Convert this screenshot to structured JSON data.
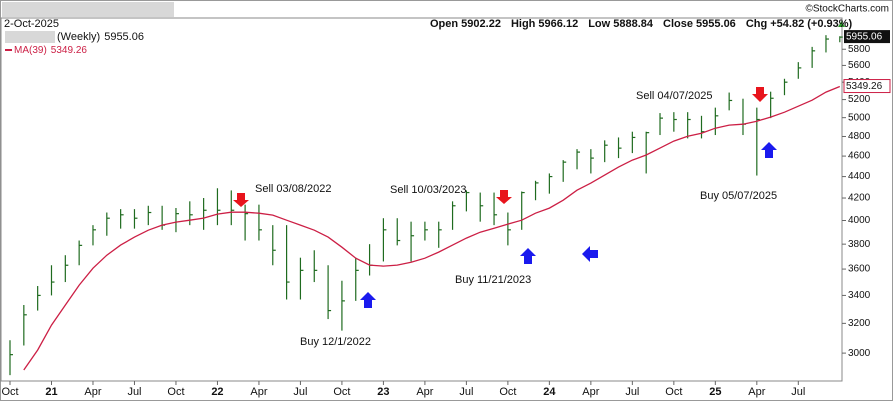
{
  "chart_data": {
    "type": "ohlc",
    "date_label": "2-Oct-2025",
    "copyright": "©StockCharts.com",
    "quote": [
      "Open 5902.22",
      "High 5966.12",
      "Low 5888.84",
      "Close 5955.06",
      "Chg +54.82 (+0.93%)"
    ],
    "annotations": [
      "Sell 03/08/2022",
      "Sell 10/03/2023",
      "Sell 04/07/2025",
      "Buy 12/1/2022",
      "Buy 11/21/2023",
      "Buy 05/07/2025"
    ],
    "x": [
      "2020-10",
      "2020-11",
      "2020-12",
      "2021-01",
      "2021-02",
      "2021-03",
      "2021-04",
      "2021-05",
      "2021-06",
      "2021-07",
      "2021-08",
      "2021-09",
      "2021-10",
      "2021-11",
      "2021-12",
      "2022-01",
      "2022-02",
      "2022-03",
      "2022-04",
      "2022-05",
      "2022-06",
      "2022-07",
      "2022-08",
      "2022-09",
      "2022-10",
      "2022-11",
      "2022-12",
      "2023-01",
      "2023-02",
      "2023-03",
      "2023-04",
      "2023-05",
      "2023-06",
      "2023-07",
      "2023-08",
      "2023-09",
      "2023-10",
      "2023-11",
      "2023-12",
      "2024-01",
      "2024-02",
      "2024-03",
      "2024-04",
      "2024-05",
      "2024-06",
      "2024-07",
      "2024-08",
      "2024-09",
      "2024-10",
      "2024-11",
      "2024-12",
      "2025-01",
      "2025-02",
      "2025-03",
      "2025-04",
      "2025-05",
      "2025-06",
      "2025-07",
      "2025-08",
      "2025-09",
      "2025-10"
    ],
    "series": [
      {
        "name": "(Weekly)",
        "color": "#1f6b1f",
        "high": [
          3085,
          3330,
          3470,
          3630,
          3710,
          3830,
          3960,
          4070,
          4100,
          4100,
          4130,
          4130,
          4110,
          4170,
          4200,
          4290,
          4270,
          4140,
          4140,
          3960,
          3960,
          3690,
          3750,
          3630,
          3510,
          3690,
          3800,
          4020,
          4020,
          3990,
          3990,
          3990,
          4170,
          4270,
          4250,
          4250,
          4070,
          4260,
          4360,
          4430,
          4560,
          4670,
          4670,
          4760,
          4790,
          4850,
          4850,
          5050,
          5060,
          5060,
          5020,
          5110,
          5280,
          5210,
          5110,
          5290,
          5440,
          5640,
          5830,
          5980,
          5966.12
        ],
        "low": [
          2860,
          3050,
          3290,
          3400,
          3500,
          3630,
          3790,
          3870,
          3930,
          3930,
          3960,
          3920,
          3900,
          3960,
          3920,
          3960,
          3960,
          3830,
          3830,
          3630,
          3370,
          3370,
          3500,
          3230,
          3150,
          3360,
          3550,
          3660,
          3790,
          3660,
          3830,
          3770,
          3920,
          4080,
          3990,
          3960,
          3790,
          3920,
          4180,
          4240,
          4350,
          4470,
          4430,
          4540,
          4580,
          4630,
          4430,
          4815,
          4850,
          4780,
          4780,
          4815,
          5080,
          4815,
          4410,
          4995,
          5250,
          5440,
          5570,
          5760,
          5888.84
        ],
        "values": [
          2990,
          3260,
          3400,
          3500,
          3630,
          3790,
          3920,
          4020,
          4050,
          4020,
          4070,
          3960,
          4060,
          4050,
          4090,
          4090,
          4090,
          4060,
          3920,
          3750,
          3500,
          3590,
          3590,
          3290,
          3360,
          3590,
          3630,
          3920,
          3830,
          3870,
          3920,
          3920,
          4130,
          4250,
          4130,
          4050,
          3920,
          4250,
          4340,
          4400,
          4540,
          4640,
          4580,
          4710,
          4680,
          4790,
          4840,
          4995,
          4980,
          4980,
          4850,
          5020,
          5190,
          4930,
          4980,
          5215,
          5400,
          5570,
          5780,
          5930,
          5955.06
        ]
      },
      {
        "name": "MA(39)",
        "color": "#cc1f45",
        "type": "line",
        "values": [
          null,
          2892,
          3020,
          3188,
          3329,
          3477,
          3607,
          3710,
          3792,
          3859,
          3917,
          3960,
          3986,
          4003,
          4021,
          4056,
          4073,
          4073,
          4064,
          4047,
          4003,
          3960,
          3917,
          3859,
          3775,
          3686,
          3631,
          3623,
          3631,
          3654,
          3686,
          3735,
          3792,
          3850,
          3900,
          3934,
          3969,
          4003,
          4064,
          4109,
          4180,
          4272,
          4338,
          4414,
          4491,
          4560,
          4611,
          4680,
          4752,
          4803,
          4834,
          4887,
          4920,
          4930,
          4962,
          5006,
          5060,
          5126,
          5193,
          5285,
          5349.26
        ]
      }
    ],
    "ylim": [
      2830,
      6180
    ],
    "log_scale": true,
    "grid": false,
    "yticks": [
      3000,
      3200,
      3400,
      3600,
      3800,
      4000,
      4200,
      4400,
      4600,
      4800,
      5000,
      5200,
      5400,
      5600,
      5800
    ],
    "xlim": [
      "2020-10",
      "2025-10"
    ],
    "xticks": [
      {
        "value": "2020-10",
        "label": "Oct"
      },
      {
        "value": "2021-01",
        "label": "21"
      },
      {
        "value": "2021-04",
        "label": "Apr"
      },
      {
        "value": "2021-07",
        "label": "Jul"
      },
      {
        "value": "2021-10",
        "label": "Oct"
      },
      {
        "value": "2022-01",
        "label": "22"
      },
      {
        "value": "2022-04",
        "label": "Apr"
      },
      {
        "value": "2022-07",
        "label": "Jul"
      },
      {
        "value": "2022-10",
        "label": "Oct"
      },
      {
        "value": "2023-01",
        "label": "23"
      },
      {
        "value": "2023-04",
        "label": "Apr"
      },
      {
        "value": "2023-07",
        "label": "Jul"
      },
      {
        "value": "2023-10",
        "label": "Oct"
      },
      {
        "value": "2024-01",
        "label": "24"
      },
      {
        "value": "2024-04",
        "label": "Apr"
      },
      {
        "value": "2024-07",
        "label": "Jul"
      },
      {
        "value": "2024-10",
        "label": "Oct"
      },
      {
        "value": "2025-01",
        "label": "25"
      },
      {
        "value": "2025-04",
        "label": "Apr"
      },
      {
        "value": "2025-07",
        "label": "Jul"
      }
    ]
  }
}
